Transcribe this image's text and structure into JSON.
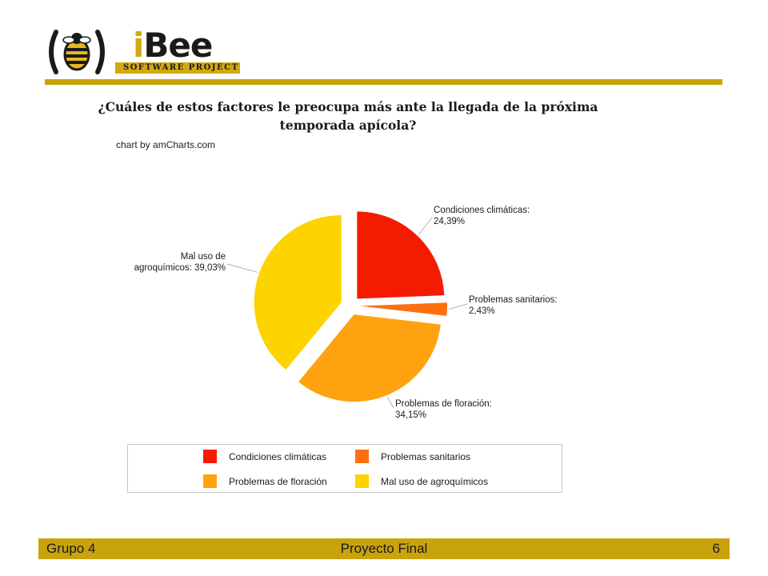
{
  "logo": {
    "word_i": "i",
    "word_rest": "Bee",
    "subtitle": "SOFTWARE PROJECT"
  },
  "chart_data": {
    "type": "pie",
    "title": "¿Cuáles de estos factores le preocupa más ante la llegada de la próxima temporada apícola?",
    "credit": "chart by amCharts.com",
    "slices": [
      {
        "label": "Condiciones climáticas",
        "value": 24.39,
        "display": "24,39%",
        "color": "#f51b00"
      },
      {
        "label": "Problemas sanitarios",
        "value": 2.43,
        "display": "2,43%",
        "color": "#fe6f10"
      },
      {
        "label": "Problemas de floración",
        "value": 34.15,
        "display": "34,15%",
        "color": "#ffa20f"
      },
      {
        "label": "Mal uso de agroquímicos",
        "value": 39.03,
        "display": "39,03%",
        "color": "#fdd300"
      }
    ],
    "legend_position": "bottom"
  },
  "footer": {
    "left": "Grupo 4",
    "center": "Proyecto Final",
    "right": "6"
  }
}
